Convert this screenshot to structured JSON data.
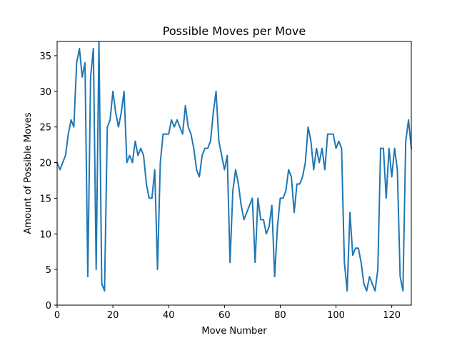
{
  "figure": {
    "background": "#ffffff"
  },
  "chart_data": {
    "type": "line",
    "title": "Possible Moves per Move",
    "xlabel": "Move Number",
    "ylabel": "Amount of Possible Moves",
    "xlim": [
      0,
      127
    ],
    "ylim": [
      0,
      37
    ],
    "xticks": [
      0,
      20,
      40,
      60,
      80,
      100,
      120
    ],
    "yticks": [
      0,
      5,
      10,
      15,
      20,
      25,
      30,
      35
    ],
    "grid": false,
    "series": [
      {
        "color": "#1f77b4",
        "x": [
          0,
          1,
          2,
          3,
          4,
          5,
          6,
          7,
          8,
          9,
          10,
          11,
          12,
          13,
          14,
          15,
          16,
          17,
          18,
          19,
          20,
          21,
          22,
          23,
          24,
          25,
          26,
          27,
          28,
          29,
          30,
          31,
          32,
          33,
          34,
          35,
          36,
          37,
          38,
          39,
          40,
          41,
          42,
          43,
          44,
          45,
          46,
          47,
          48,
          49,
          50,
          51,
          52,
          53,
          54,
          55,
          56,
          57,
          58,
          59,
          60,
          61,
          62,
          63,
          64,
          65,
          66,
          67,
          68,
          69,
          70,
          71,
          72,
          73,
          74,
          75,
          76,
          77,
          78,
          79,
          80,
          81,
          82,
          83,
          84,
          85,
          86,
          87,
          88,
          89,
          90,
          91,
          92,
          93,
          94,
          95,
          96,
          97,
          98,
          99,
          100,
          101,
          102,
          103,
          104,
          105,
          106,
          107,
          108,
          109,
          110,
          111,
          112,
          113,
          114,
          115,
          116,
          117,
          118,
          119,
          120,
          121,
          122,
          123,
          124,
          125,
          126,
          127
        ],
        "values": [
          20,
          19,
          20,
          21,
          24,
          26,
          25,
          34,
          36,
          32,
          34,
          4,
          32,
          36,
          5,
          37,
          3,
          2,
          25,
          26,
          30,
          27,
          25,
          27,
          30,
          20,
          21,
          20,
          23,
          21,
          22,
          21,
          17,
          15,
          15,
          19,
          5,
          20,
          24,
          24,
          24,
          26,
          25,
          26,
          25,
          24,
          28,
          25,
          24,
          22,
          19,
          18,
          21,
          22,
          22,
          23,
          27,
          30,
          23,
          21,
          19,
          21,
          6,
          16,
          19,
          17,
          14,
          12,
          13,
          14,
          15,
          6,
          15,
          12,
          12,
          10,
          11,
          14,
          4,
          11,
          15,
          15,
          16,
          19,
          18,
          13,
          17,
          17,
          18,
          20,
          25,
          23,
          19,
          22,
          20,
          22,
          19,
          24,
          24,
          24,
          22,
          23,
          22,
          6,
          2,
          13,
          7,
          8,
          8,
          6,
          3,
          2,
          4,
          3,
          2,
          5,
          22,
          22,
          15,
          22,
          18,
          22,
          19,
          4,
          2,
          23,
          26,
          22
        ]
      }
    ]
  }
}
